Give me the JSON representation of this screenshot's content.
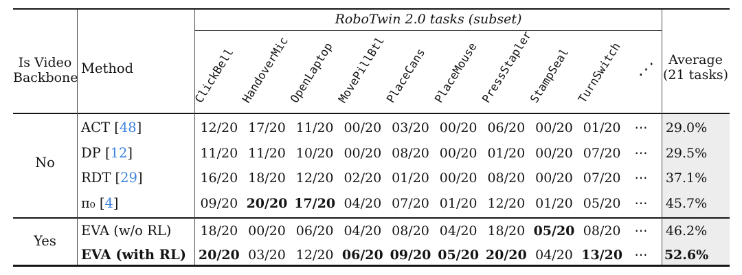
{
  "colors": {
    "cite_link": "#3d82dd",
    "average_column_bg": "#ededed",
    "rule_color": "#151515"
  },
  "table": {
    "header": {
      "col1_line1": "Is Video",
      "col1_line2": "Backbone",
      "col2": "Method",
      "tasks_group_title": "RoboTwin 2.0 tasks (subset)",
      "tasks_ellipsis": "⋰",
      "avg_line1": "Average",
      "avg_line2": "(21 tasks)"
    },
    "tasks": [
      "ClickBell",
      "HandoverMic",
      "OpenLaptop",
      "MovePillBtl",
      "PlaceCans",
      "PlaceMouse",
      "PressStapler",
      "StampSeal",
      "TurnSwitch"
    ],
    "row_ellipsis": "⋯",
    "groups": [
      {
        "label": "No",
        "rows": [
          {
            "method": "ACT",
            "cite": "48",
            "bold_label": false,
            "scores": [
              "12/20",
              "17/20",
              "11/20",
              "00/20",
              "03/20",
              "00/20",
              "06/20",
              "00/20",
              "01/20"
            ],
            "bold_scores": [],
            "average": "29.0%",
            "bold_average": false
          },
          {
            "method": "DP",
            "cite": "12",
            "bold_label": false,
            "scores": [
              "11/20",
              "11/20",
              "10/20",
              "00/20",
              "08/20",
              "00/20",
              "01/20",
              "00/20",
              "07/20"
            ],
            "bold_scores": [],
            "average": "29.5%",
            "bold_average": false
          },
          {
            "method": "RDT",
            "cite": "29",
            "bold_label": false,
            "scores": [
              "16/20",
              "18/20",
              "12/20",
              "02/20",
              "01/20",
              "00/20",
              "08/20",
              "00/20",
              "07/20"
            ],
            "bold_scores": [],
            "average": "37.1%",
            "bold_average": false
          },
          {
            "method": "π₀",
            "cite": "4",
            "bold_label": false,
            "scores": [
              "09/20",
              "20/20",
              "17/20",
              "04/20",
              "07/20",
              "01/20",
              "12/20",
              "01/20",
              "05/20"
            ],
            "bold_scores": [
              1,
              2
            ],
            "average": "45.7%",
            "bold_average": false
          }
        ]
      },
      {
        "label": "Yes",
        "rows": [
          {
            "method": "EVA (w/o RL)",
            "cite": null,
            "bold_label": false,
            "scores": [
              "18/20",
              "00/20",
              "06/20",
              "04/20",
              "08/20",
              "04/20",
              "18/20",
              "05/20",
              "08/20"
            ],
            "bold_scores": [
              7
            ],
            "average": "46.2%",
            "bold_average": false
          },
          {
            "method": "EVA (with RL)",
            "cite": null,
            "bold_label": true,
            "scores": [
              "20/20",
              "03/20",
              "12/20",
              "06/20",
              "09/20",
              "05/20",
              "20/20",
              "04/20",
              "13/20"
            ],
            "bold_scores": [
              0,
              3,
              4,
              5,
              6,
              8
            ],
            "average": "52.6%",
            "bold_average": true
          }
        ]
      }
    ]
  }
}
